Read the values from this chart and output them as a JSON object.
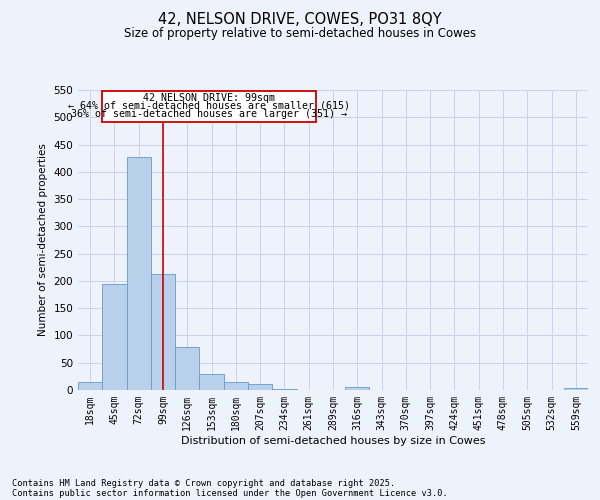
{
  "title": "42, NELSON DRIVE, COWES, PO31 8QY",
  "subtitle": "Size of property relative to semi-detached houses in Cowes",
  "xlabel": "Distribution of semi-detached houses by size in Cowes",
  "ylabel": "Number of semi-detached properties",
  "footnote1": "Contains HM Land Registry data © Crown copyright and database right 2025.",
  "footnote2": "Contains public sector information licensed under the Open Government Licence v3.0.",
  "annotation_line1": "42 NELSON DRIVE: 99sqm",
  "annotation_line2": "← 64% of semi-detached houses are smaller (615)",
  "annotation_line3": "36% of semi-detached houses are larger (351) →",
  "bar_color": "#b8d0ea",
  "bar_edge_color": "#6699cc",
  "grid_color": "#c8d4e8",
  "vline_color": "#cc0000",
  "vline_x": 3,
  "categories": [
    "18sqm",
    "45sqm",
    "72sqm",
    "99sqm",
    "126sqm",
    "153sqm",
    "180sqm",
    "207sqm",
    "234sqm",
    "261sqm",
    "289sqm",
    "316sqm",
    "343sqm",
    "370sqm",
    "397sqm",
    "424sqm",
    "451sqm",
    "478sqm",
    "505sqm",
    "532sqm",
    "559sqm"
  ],
  "values": [
    15,
    195,
    428,
    213,
    78,
    29,
    14,
    11,
    2,
    0,
    0,
    5,
    0,
    0,
    0,
    0,
    0,
    0,
    0,
    0,
    4
  ],
  "ylim": [
    0,
    550
  ],
  "yticks": [
    0,
    50,
    100,
    150,
    200,
    250,
    300,
    350,
    400,
    450,
    500,
    550
  ],
  "background_color": "#eef2fa",
  "plot_background": "#eef2fa"
}
